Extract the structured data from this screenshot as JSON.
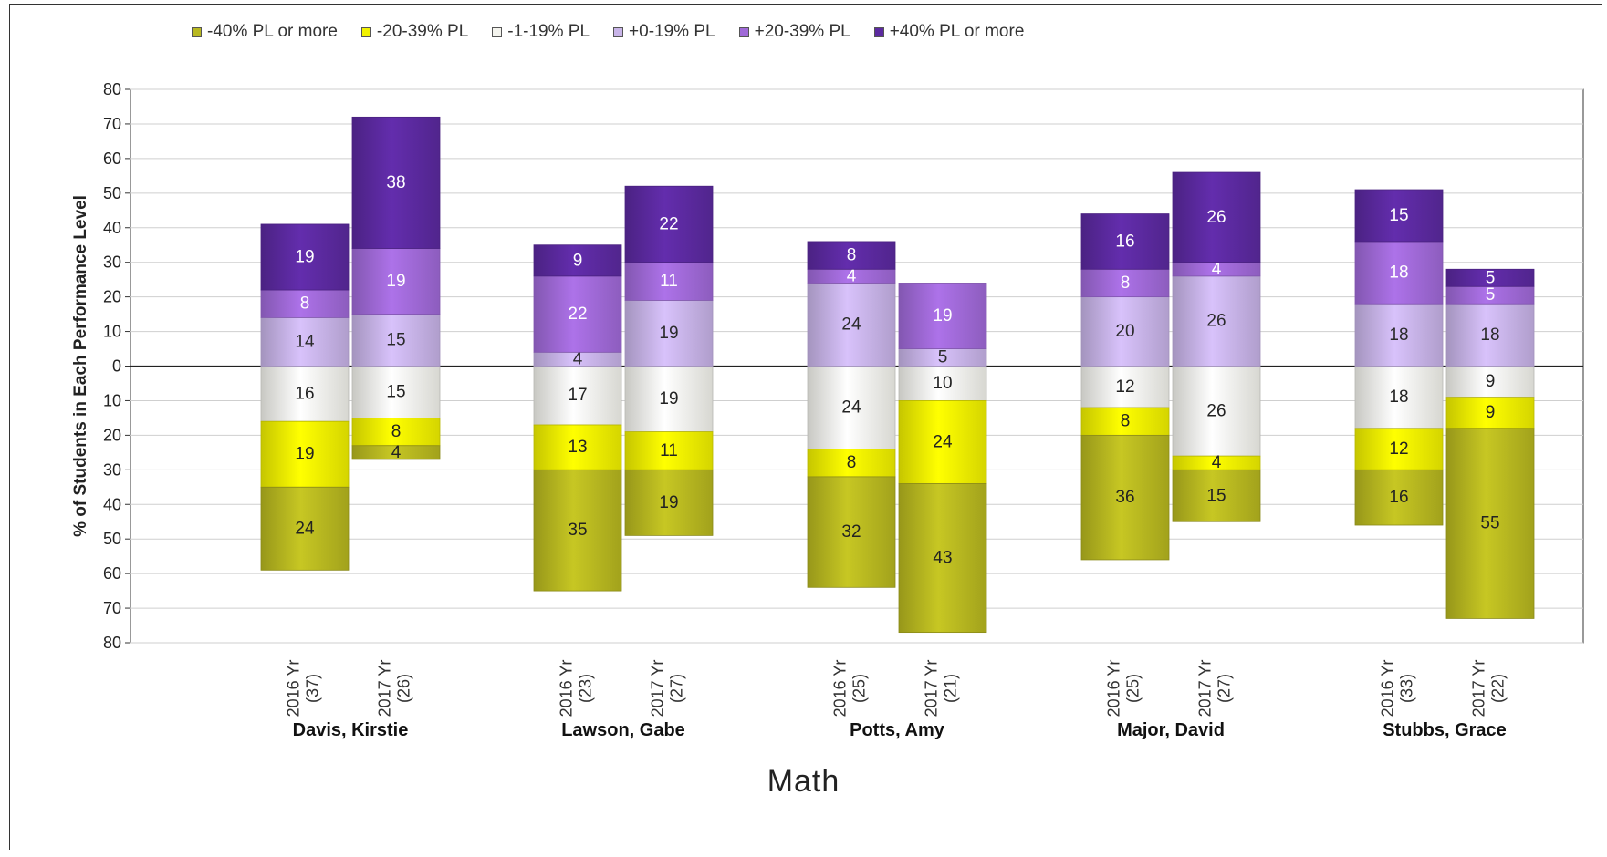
{
  "chart_data": {
    "type": "bar",
    "stacked": true,
    "diverging": true,
    "title": "Math",
    "ylabel": "% of Students in Each Performance Level",
    "xlabel": "",
    "ylim": [
      -80,
      80
    ],
    "yticks": [
      80,
      70,
      60,
      50,
      40,
      30,
      20,
      10,
      0,
      10,
      20,
      30,
      40,
      50,
      60,
      70,
      80
    ],
    "grid": true,
    "legend_position": "top",
    "legend": [
      {
        "name": "-40% PL or more",
        "color": "#b8b820"
      },
      {
        "name": "-20-39% PL",
        "color": "#f2f200"
      },
      {
        "name": "-1-19% PL",
        "color": "#f4f4ee"
      },
      {
        "name": "+0-19% PL",
        "color": "#c8b4e8"
      },
      {
        "name": "+20-39% PL",
        "color": "#a06ad8"
      },
      {
        "name": "+40% PL or more",
        "color": "#5c2aa0"
      }
    ],
    "groups": [
      {
        "name": "Davis, Kirstie",
        "bars": [
          {
            "label": [
              "2016 Yr",
              "(37)"
            ],
            "values": [
              24,
              19,
              16,
              14,
              8,
              19
            ]
          },
          {
            "label": [
              "2017 Yr",
              "(26)"
            ],
            "values": [
              4,
              8,
              15,
              15,
              19,
              38
            ]
          }
        ]
      },
      {
        "name": "Lawson, Gabe",
        "bars": [
          {
            "label": [
              "2016 Yr",
              "(23)"
            ],
            "values": [
              35,
              13,
              17,
              4,
              22,
              9
            ]
          },
          {
            "label": [
              "2017 Yr",
              "(27)"
            ],
            "values": [
              19,
              11,
              19,
              19,
              11,
              22
            ]
          }
        ]
      },
      {
        "name": "Potts, Amy",
        "bars": [
          {
            "label": [
              "2016 Yr",
              "(25)"
            ],
            "values": [
              32,
              8,
              24,
              24,
              4,
              8
            ]
          },
          {
            "label": [
              "2017 Yr",
              "(21)"
            ],
            "values": [
              43,
              24,
              10,
              5,
              19,
              0
            ]
          }
        ]
      },
      {
        "name": "Major, David",
        "bars": [
          {
            "label": [
              "2016 Yr",
              "(25)"
            ],
            "values": [
              36,
              8,
              12,
              20,
              8,
              16
            ]
          },
          {
            "label": [
              "2017 Yr",
              "(27)"
            ],
            "values": [
              15,
              4,
              26,
              26,
              4,
              26
            ]
          }
        ]
      },
      {
        "name": "Stubbs, Grace",
        "bars": [
          {
            "label": [
              "2016 Yr",
              "(33)"
            ],
            "values": [
              16,
              12,
              18,
              18,
              18,
              15
            ]
          },
          {
            "label": [
              "2017 Yr",
              "(22)"
            ],
            "values": [
              55,
              9,
              9,
              18,
              5,
              5
            ]
          }
        ]
      }
    ]
  }
}
